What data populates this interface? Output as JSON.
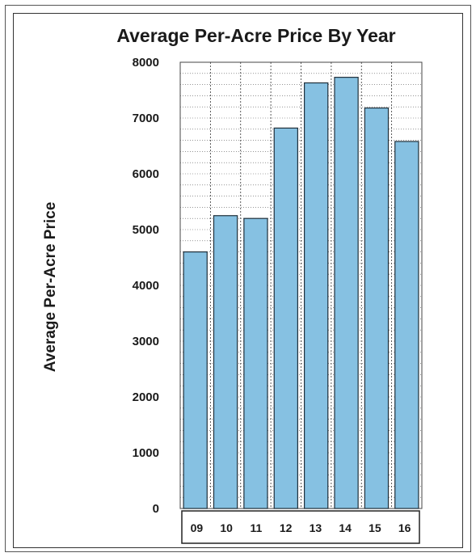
{
  "chart_data": {
    "type": "bar",
    "title": "Average Per-Acre Price By Year",
    "xlabel": "",
    "ylabel": "Average Per-Acre Price",
    "categories": [
      "09",
      "10",
      "11",
      "12",
      "13",
      "14",
      "15",
      "16"
    ],
    "values": [
      4600,
      5250,
      5200,
      6820,
      7630,
      7730,
      7180,
      6580
    ],
    "ylim": [
      0,
      8000
    ],
    "yticks": [
      "0",
      "1000",
      "2000",
      "3000",
      "4000",
      "5000",
      "6000",
      "7000",
      "8000"
    ],
    "grid": true,
    "legend": "none",
    "colors": {
      "bar": "#86c1e2",
      "bar_edge": "#1f2f3a",
      "grid": "#555555"
    }
  }
}
